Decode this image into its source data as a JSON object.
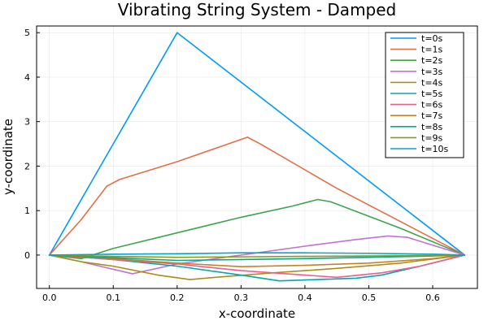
{
  "chart_data": {
    "type": "line",
    "title": "Vibrating String System - Damped",
    "xlabel": "x-coordinate",
    "ylabel": "y-coordinate",
    "xlim": [
      -0.02,
      0.67
    ],
    "ylim": [
      -0.75,
      5.15
    ],
    "xticks": [
      0.0,
      0.1,
      0.2,
      0.3,
      0.4,
      0.5,
      0.6
    ],
    "xtick_labels": [
      "0.0",
      "0.1",
      "0.2",
      "0.3",
      "0.4",
      "0.5",
      "0.6"
    ],
    "yticks": [
      0,
      1,
      2,
      3,
      4,
      5
    ],
    "ytick_labels": [
      "0",
      "1",
      "2",
      "3",
      "4",
      "5"
    ],
    "grid": true,
    "legend_position": "top-right",
    "series": [
      {
        "name": "t=0s",
        "color": "#009AFA",
        "x": [
          0.0,
          0.2,
          0.65
        ],
        "y": [
          0.0,
          5.0,
          0.0
        ]
      },
      {
        "name": "t=1s",
        "color": "#E36F47",
        "x": [
          0.0,
          0.05,
          0.09,
          0.11,
          0.2,
          0.28,
          0.31,
          0.33,
          0.45,
          0.65
        ],
        "y": [
          0.0,
          0.8,
          1.55,
          1.7,
          2.1,
          2.5,
          2.65,
          2.5,
          1.5,
          0.0
        ]
      },
      {
        "name": "t=2s",
        "color": "#3EA44E",
        "x": [
          0.0,
          0.05,
          0.1,
          0.2,
          0.3,
          0.38,
          0.42,
          0.44,
          0.55,
          0.65
        ],
        "y": [
          0.0,
          -0.08,
          0.15,
          0.5,
          0.85,
          1.1,
          1.25,
          1.2,
          0.6,
          0.0
        ]
      },
      {
        "name": "t=3s",
        "color": "#C371D2",
        "x": [
          0.0,
          0.05,
          0.1,
          0.13,
          0.2,
          0.3,
          0.4,
          0.48,
          0.53,
          0.56,
          0.65
        ],
        "y": [
          0.0,
          -0.15,
          -0.32,
          -0.42,
          -0.2,
          0.0,
          0.2,
          0.35,
          0.43,
          0.4,
          0.0
        ]
      },
      {
        "name": "t=4s",
        "color": "#AC8D18",
        "x": [
          0.0,
          0.05,
          0.1,
          0.17,
          0.22,
          0.26,
          0.35,
          0.45,
          0.55,
          0.65
        ],
        "y": [
          0.0,
          -0.15,
          -0.25,
          -0.45,
          -0.55,
          -0.5,
          -0.4,
          -0.3,
          -0.18,
          0.0
        ]
      },
      {
        "name": "t=5s",
        "color": "#00A9AD",
        "x": [
          0.0,
          0.1,
          0.2,
          0.3,
          0.36,
          0.42,
          0.48,
          0.52,
          0.58,
          0.65
        ],
        "y": [
          0.0,
          -0.1,
          -0.25,
          -0.45,
          -0.58,
          -0.55,
          -0.52,
          -0.45,
          -0.25,
          0.0
        ]
      },
      {
        "name": "t=6s",
        "color": "#ED5D92",
        "x": [
          0.0,
          0.1,
          0.2,
          0.3,
          0.4,
          0.45,
          0.52,
          0.58,
          0.65
        ],
        "y": [
          0.0,
          -0.1,
          -0.2,
          -0.35,
          -0.45,
          -0.5,
          -0.4,
          -0.25,
          0.0
        ]
      },
      {
        "name": "t=7s",
        "color": "#C68225",
        "x": [
          0.0,
          0.1,
          0.2,
          0.3,
          0.4,
          0.5,
          0.6,
          0.65
        ],
        "y": [
          0.0,
          -0.08,
          -0.18,
          -0.26,
          -0.23,
          -0.18,
          -0.08,
          0.0
        ]
      },
      {
        "name": "t=8s",
        "color": "#00A98E",
        "x": [
          0.0,
          0.1,
          0.2,
          0.3,
          0.4,
          0.5,
          0.6,
          0.65
        ],
        "y": [
          0.0,
          -0.06,
          -0.12,
          -0.1,
          -0.08,
          -0.05,
          -0.02,
          0.0
        ]
      },
      {
        "name": "t=9s",
        "color": "#8E971D",
        "x": [
          0.0,
          0.1,
          0.2,
          0.3,
          0.4,
          0.5,
          0.6,
          0.65
        ],
        "y": [
          0.0,
          -0.03,
          -0.05,
          -0.04,
          -0.03,
          -0.02,
          -0.01,
          0.0
        ]
      },
      {
        "name": "t=10s",
        "color": "#00A8CB",
        "x": [
          0.0,
          0.1,
          0.2,
          0.3,
          0.4,
          0.5,
          0.6,
          0.65
        ],
        "y": [
          0.0,
          0.02,
          0.03,
          0.05,
          0.05,
          0.04,
          0.02,
          0.0
        ]
      }
    ]
  }
}
